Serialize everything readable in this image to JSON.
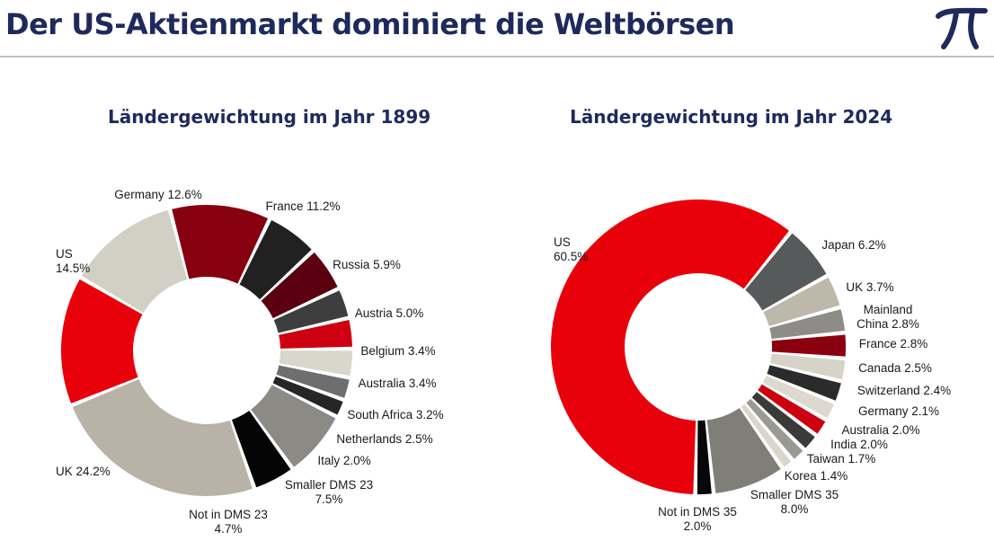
{
  "header": {
    "title": "Der US-Aktienmarkt dominiert die Weltbörsen",
    "logo_icon": "pi-logo-icon",
    "logo_color": "#1f2a5c"
  },
  "chart_data": [
    {
      "type": "pie",
      "title": "Ländergewichtung im Jahr 1899",
      "unit": "%",
      "series": [
        {
          "label": "US",
          "value": 14.5,
          "text": [
            "US",
            "14.5%"
          ],
          "color": "#e8000b"
        },
        {
          "label": "Germany",
          "value": 12.6,
          "text": [
            "Germany 12.6%"
          ],
          "color": "#d2cfc4"
        },
        {
          "label": "France",
          "value": 11.2,
          "text": [
            "France 11.2%"
          ],
          "color": "#86000f"
        },
        {
          "label": "Russia",
          "value": 5.9,
          "text": [
            "Russia 5.9%"
          ],
          "color": "#212121"
        },
        {
          "label": "Austria",
          "value": 5.0,
          "text": [
            "Austria 5.0%"
          ],
          "color": "#5a0010"
        },
        {
          "label": "Belgium",
          "value": 3.4,
          "text": [
            "Belgium 3.4%"
          ],
          "color": "#3e3e3e"
        },
        {
          "label": "Australia",
          "value": 3.4,
          "text": [
            "Australia 3.4%"
          ],
          "color": "#cc0010"
        },
        {
          "label": "South Africa",
          "value": 3.2,
          "text": [
            "South Africa 3.2%"
          ],
          "color": "#d9d6cc"
        },
        {
          "label": "Netherlands",
          "value": 2.5,
          "text": [
            "Netherlands 2.5%"
          ],
          "color": "#6e6e6e"
        },
        {
          "label": "Italy",
          "value": 2.0,
          "text": [
            "Italy 2.0%"
          ],
          "color": "#262626"
        },
        {
          "label": "Smaller DMS23",
          "value": 7.5,
          "text": [
            "Smaller DMS 23",
            "7.5%"
          ],
          "color": "#8c8a84"
        },
        {
          "label": "Not in DMS23",
          "value": 4.7,
          "text": [
            "Not in DMS 23",
            "4.7%"
          ],
          "color": "#050505"
        },
        {
          "label": "UK",
          "value": 24.2,
          "text": [
            "UK 24.2%"
          ],
          "color": "#b8b3a6"
        }
      ]
    },
    {
      "type": "pie",
      "title": "Ländergewichtung im Jahr 2024",
      "unit": "%",
      "series": [
        {
          "label": "US",
          "value": 60.5,
          "text": [
            "US",
            "60.5%"
          ],
          "color": "#e8000b"
        },
        {
          "label": "Japan",
          "value": 6.2,
          "text": [
            "Japan 6.2%"
          ],
          "color": "#575a5a"
        },
        {
          "label": "UK",
          "value": 3.7,
          "text": [
            "UK 3.7%"
          ],
          "color": "#bdb8aa"
        },
        {
          "label": "Mainland China",
          "value": 2.8,
          "text": [
            "Mainland",
            "China 2.8%"
          ],
          "color": "#8e8c88"
        },
        {
          "label": "France",
          "value": 2.8,
          "text": [
            "France 2.8%"
          ],
          "color": "#8b000f"
        },
        {
          "label": "Canada",
          "value": 2.5,
          "text": [
            "Canada 2.5%"
          ],
          "color": "#d6d3c9"
        },
        {
          "label": "Switzerland",
          "value": 2.4,
          "text": [
            "Switzerland 2.4%"
          ],
          "color": "#2b2b2b"
        },
        {
          "label": "Germany",
          "value": 2.1,
          "text": [
            "Germany 2.1%"
          ],
          "color": "#ddd9cf"
        },
        {
          "label": "Australia",
          "value": 2.0,
          "text": [
            "Australia 2.0%"
          ],
          "color": "#cc0010"
        },
        {
          "label": "India",
          "value": 2.0,
          "text": [
            "India 2.0%"
          ],
          "color": "#3a3a3a"
        },
        {
          "label": "Taiwan",
          "value": 1.7,
          "text": [
            "Taiwan 1.7%"
          ],
          "color": "#9b9994"
        },
        {
          "label": "Korea",
          "value": 1.4,
          "text": [
            "Korea 1.4%"
          ],
          "color": "#d9d6cc"
        },
        {
          "label": "Smaller DMS35",
          "value": 8.0,
          "text": [
            "Smaller DMS 35",
            "8.0%"
          ],
          "color": "#807e79"
        },
        {
          "label": "Not in DMS35",
          "value": 2.0,
          "text": [
            "Not in DMS 35",
            "2.0%"
          ],
          "color": "#080808"
        }
      ]
    }
  ]
}
